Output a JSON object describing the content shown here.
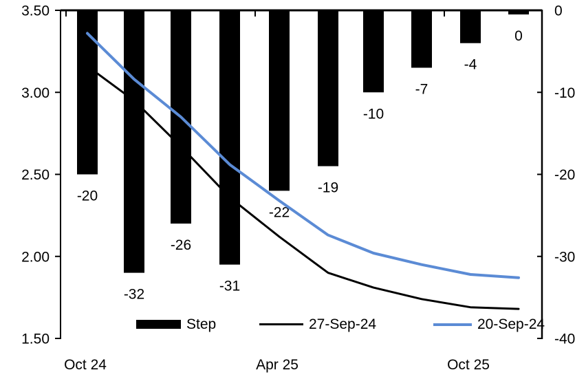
{
  "chart_data": {
    "type": "bar-line-combo",
    "title": "",
    "x_tick_labels": [
      "Oct 24",
      "Apr 25",
      "Oct 25"
    ],
    "left_axis": {
      "tick_labels": [
        "3.50",
        "3.00",
        "2.50",
        "2.00",
        "1.50"
      ],
      "min": 1.5,
      "max": 3.5
    },
    "right_axis": {
      "tick_labels": [
        "0",
        "-10",
        "-20",
        "-30",
        "-40"
      ],
      "min": -40,
      "max": 0
    },
    "bars": {
      "name": "Step",
      "axis": "right",
      "color": "#000000",
      "values": [
        -20,
        -32,
        -26,
        -31,
        -22,
        -19,
        -10,
        -7,
        -4,
        0
      ],
      "labels": [
        "-20",
        "-32",
        "-26",
        "-31",
        "-22",
        "-19",
        "-10",
        "-7",
        "-4",
        "0"
      ]
    },
    "series": [
      {
        "name": "27-Sep-24",
        "axis": "left",
        "color": "#000000",
        "stroke_width": 3,
        "values": [
          3.16,
          2.95,
          2.67,
          2.36,
          2.12,
          1.9,
          1.81,
          1.74,
          1.69,
          1.68
        ]
      },
      {
        "name": "20-Sep-24",
        "axis": "left",
        "color": "#5B8BD5",
        "stroke_width": 4,
        "values": [
          3.36,
          3.08,
          2.85,
          2.56,
          2.34,
          2.13,
          2.02,
          1.95,
          1.89,
          1.87
        ]
      }
    ],
    "legend": [
      {
        "label": "Step",
        "kind": "bar",
        "color": "#000000"
      },
      {
        "label": "27-Sep-24",
        "kind": "line",
        "color": "#000000"
      },
      {
        "label": "20-Sep-24",
        "kind": "line",
        "color": "#5B8BD5"
      }
    ],
    "grid": false,
    "legend_position": "bottom-inside"
  }
}
